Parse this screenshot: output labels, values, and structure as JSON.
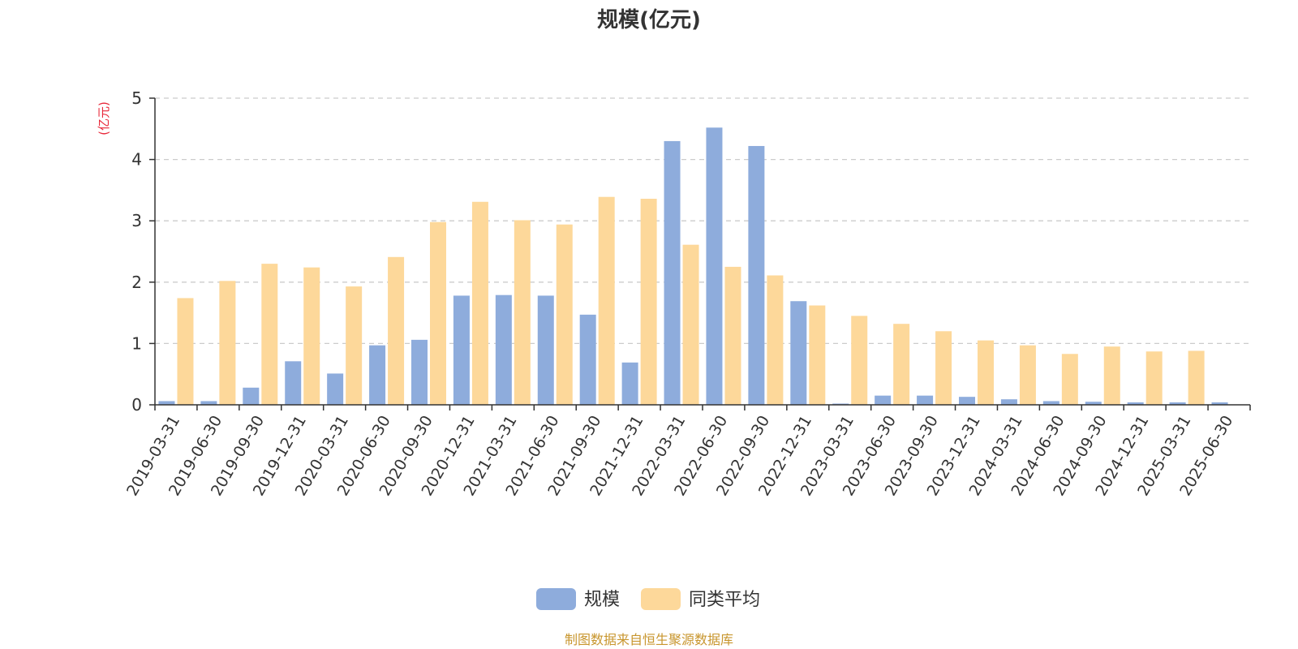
{
  "chart_data": {
    "type": "bar",
    "title": "规模(亿元)",
    "ylabel": "(亿元)",
    "xlabel": "",
    "ylim": [
      0,
      5
    ],
    "yticks": [
      0,
      1,
      2,
      3,
      4,
      5
    ],
    "grid": true,
    "legend_position": "bottom-center",
    "categories": [
      "2019-03-31",
      "2019-06-30",
      "2019-09-30",
      "2019-12-31",
      "2020-03-31",
      "2020-06-30",
      "2020-09-30",
      "2020-12-31",
      "2021-03-31",
      "2021-06-30",
      "2021-09-30",
      "2021-12-31",
      "2022-03-31",
      "2022-06-30",
      "2022-09-30",
      "2022-12-31",
      "2023-03-31",
      "2023-06-30",
      "2023-09-30",
      "2023-12-31",
      "2024-03-31",
      "2024-06-30",
      "2024-09-30",
      "2024-12-31",
      "2025-03-31",
      "2025-06-30"
    ],
    "series": [
      {
        "name": "规模",
        "color": "#8eacdc",
        "values": [
          0.06,
          0.06,
          0.28,
          0.71,
          0.51,
          0.97,
          1.06,
          1.78,
          1.79,
          1.78,
          1.47,
          0.69,
          4.3,
          4.52,
          4.22,
          1.69,
          0.02,
          0.15,
          0.15,
          0.13,
          0.09,
          0.06,
          0.05,
          0.04,
          0.04,
          0.04
        ]
      },
      {
        "name": "同类平均",
        "color": "#fdd89a",
        "values": [
          1.74,
          2.02,
          2.3,
          2.24,
          1.93,
          2.41,
          2.98,
          3.31,
          3.01,
          2.94,
          3.39,
          3.36,
          2.61,
          2.25,
          2.11,
          1.62,
          1.45,
          1.32,
          1.2,
          1.05,
          0.97,
          0.83,
          0.95,
          0.87,
          0.88,
          null
        ]
      }
    ]
  },
  "footer": {
    "source": "制图数据来自恒生聚源数据库"
  },
  "colors": {
    "unit_label": "#e8283a",
    "source_text": "#c8962e",
    "axis": "#333333",
    "grid": "#cccccc"
  }
}
